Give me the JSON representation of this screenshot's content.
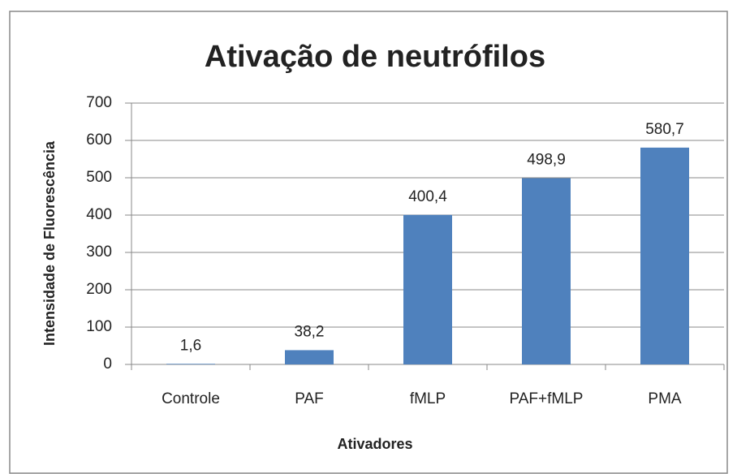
{
  "chart_data": {
    "type": "bar",
    "title": "Ativação de neutrófilos",
    "x_label": "Ativadores",
    "y_label": "Intensidade de Fluorescência",
    "categories": [
      "Controle",
      "PAF",
      "fMLP",
      "PAF+fMLP",
      "PMA"
    ],
    "values": [
      1.6,
      38.2,
      400.4,
      498.9,
      580.7
    ],
    "value_labels": [
      "1,6",
      "38,2",
      "400,4",
      "498,9",
      "580,7"
    ],
    "color": "#4f81bd",
    "ylim": [
      0,
      700
    ],
    "yticks": [
      0,
      100,
      200,
      300,
      400,
      500,
      600,
      700
    ],
    "grid": true
  }
}
